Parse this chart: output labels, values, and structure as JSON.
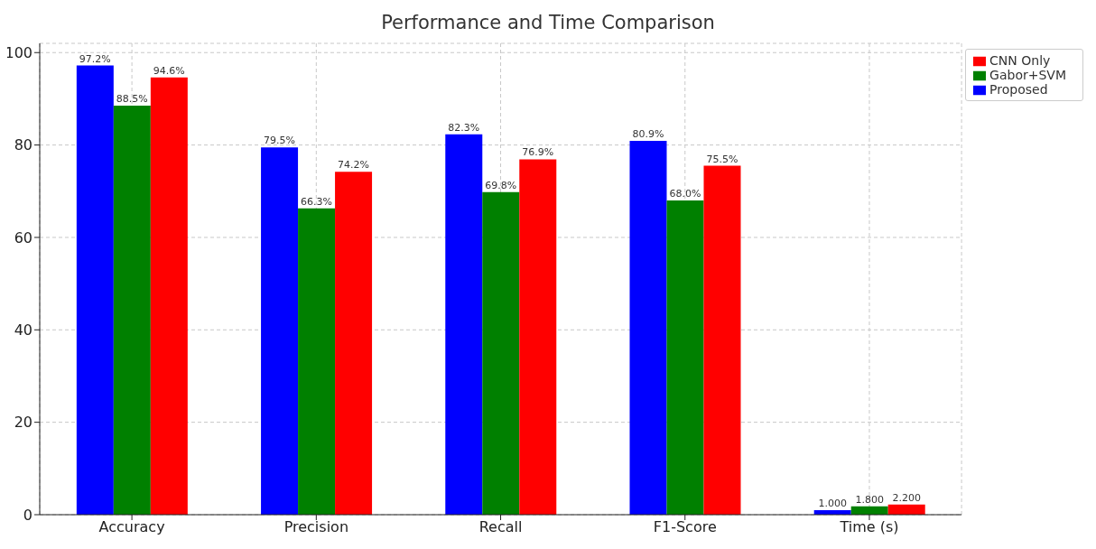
{
  "chart_data": {
    "type": "bar",
    "title": "Performance and Time Comparison",
    "categories": [
      "Accuracy",
      "Precision",
      "Recall",
      "F1-Score",
      "Time (s)"
    ],
    "series": [
      {
        "name": "Proposed",
        "color": "#0000ff",
        "values": [
          97.2,
          79.5,
          82.3,
          80.9,
          1.0
        ],
        "value_labels": [
          "97.2%",
          "79.5%",
          "82.3%",
          "80.9%",
          "1.000"
        ]
      },
      {
        "name": "Gabor+SVM",
        "color": "#008000",
        "values": [
          88.5,
          66.3,
          69.8,
          68.0,
          1.8
        ],
        "value_labels": [
          "88.5%",
          "66.3%",
          "69.8%",
          "68.0%",
          "1.800"
        ]
      },
      {
        "name": "CNN Only",
        "color": "#ff0000",
        "values": [
          94.6,
          74.2,
          76.9,
          75.5,
          2.2
        ],
        "value_labels": [
          "94.6%",
          "74.2%",
          "76.9%",
          "75.5%",
          "2.200"
        ]
      }
    ],
    "ylim": [
      0,
      102
    ],
    "yticks": [
      0,
      20,
      40,
      60,
      80,
      100
    ],
    "grid": true,
    "legend": "top right"
  }
}
